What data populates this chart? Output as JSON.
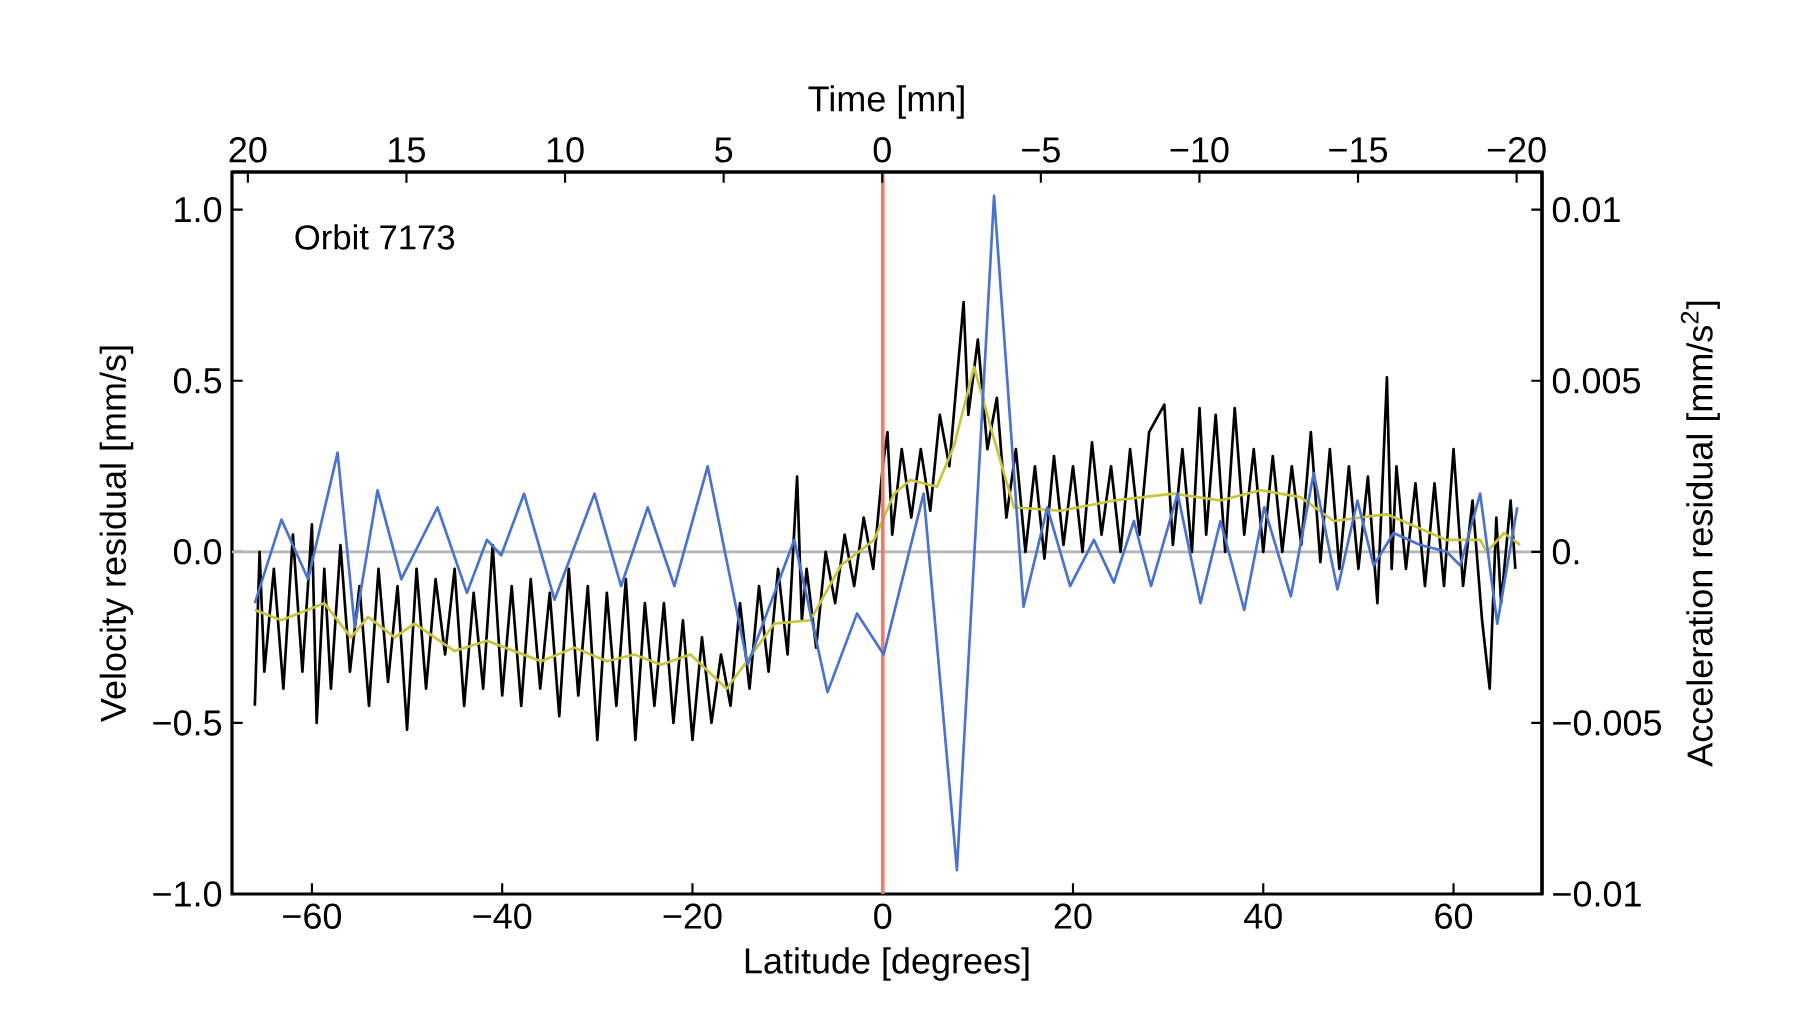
{
  "chart_data": {
    "type": "line",
    "xlabel": "Latitude [degrees]",
    "ylabel": "Velocity residual [mm/s]",
    "y2label": "Acceleration residual [mm/s$^{2}$]",
    "x2label": "Time [mn]",
    "xlim": [
      -68.4,
      69.3
    ],
    "ylim": [
      -1.0,
      1.11
    ],
    "y2lim": [
      -0.01,
      0.0111
    ],
    "x2lim": [
      20.5,
      -20.8
    ],
    "xticks": [
      {
        "value": -60,
        "label": "−60"
      },
      {
        "value": -40,
        "label": "−40"
      },
      {
        "value": -20,
        "label": "−20"
      },
      0,
      20,
      40,
      60
    ],
    "yticks": [
      {
        "value": -1.0,
        "label": "−1.0"
      },
      {
        "value": -0.5,
        "label": "−0.5"
      },
      {
        "value": 0,
        "label": "0.0"
      },
      {
        "value": 0.5,
        "label": "0.5"
      },
      {
        "value": 1.0,
        "label": "1.0"
      }
    ],
    "y2ticks": [
      {
        "value": -0.01,
        "label": "−0.01"
      },
      {
        "value": -0.005,
        "label": "−0.005"
      },
      {
        "value": 0,
        "label": "0."
      },
      0.005,
      0.01
    ],
    "x2ticks": [
      20,
      15,
      10,
      5,
      0,
      {
        "value": -5,
        "label": "−5"
      },
      {
        "value": -10,
        "label": "−10"
      },
      {
        "value": -15,
        "label": "−15"
      },
      {
        "value": -20,
        "label": "−20"
      }
    ],
    "annotations": [
      "Orbit 7173"
    ],
    "ref_lines": [
      {
        "axis": "y",
        "value": 0,
        "color": "#b4b4b4"
      },
      {
        "axis": "x",
        "value": 0,
        "color": "#f07a66"
      }
    ],
    "series": [
      {
        "color": "#000000",
        "x": [
          -66,
          -65.5,
          -65,
          -64,
          -63,
          -62,
          -61,
          -60,
          -59.5,
          -58.7,
          -58,
          -57,
          -56,
          -55,
          -54,
          -53,
          -52,
          -51,
          -50,
          -49,
          -48,
          -47,
          -46,
          -45,
          -44,
          -43,
          -42,
          -41,
          -40,
          -39,
          -38,
          -37,
          -36,
          -35,
          -34,
          -33,
          -32,
          -31,
          -30,
          -29,
          -28,
          -27,
          -26,
          -25,
          -24,
          -23,
          -22,
          -21,
          -20,
          -19,
          -18,
          -17,
          -16,
          -15,
          -14,
          -13,
          -12,
          -11,
          -10,
          -9,
          -8.5,
          -8,
          -7,
          -6,
          -5,
          -4,
          -3,
          -2,
          -1,
          0,
          0.5,
          1,
          2,
          3,
          4,
          5,
          6,
          7,
          8.5,
          9,
          10,
          11,
          12,
          13,
          14,
          15,
          16,
          17,
          18,
          19,
          20,
          21,
          22,
          23,
          24,
          25,
          26,
          27,
          28,
          29.6,
          30.5,
          31.5,
          32.5,
          33.3,
          34,
          35,
          36,
          37,
          38,
          39,
          40,
          41,
          42,
          43,
          44,
          45,
          46,
          47,
          48,
          49,
          50,
          51,
          52,
          53,
          53.5,
          54,
          55,
          56,
          57,
          58,
          59,
          60,
          61,
          62,
          63,
          63.8,
          64.5,
          65,
          66,
          66.5
        ],
        "values": [
          -0.45,
          0.0,
          -0.35,
          -0.05,
          -0.4,
          0.05,
          -0.35,
          0.08,
          -0.5,
          -0.05,
          -0.4,
          0.02,
          -0.35,
          -0.1,
          -0.45,
          -0.05,
          -0.38,
          -0.1,
          -0.52,
          -0.05,
          -0.4,
          -0.08,
          -0.3,
          -0.05,
          -0.45,
          -0.12,
          -0.4,
          0.02,
          -0.42,
          -0.1,
          -0.45,
          -0.08,
          -0.4,
          -0.12,
          -0.48,
          -0.05,
          -0.42,
          -0.1,
          -0.55,
          -0.12,
          -0.45,
          -0.08,
          -0.55,
          -0.15,
          -0.45,
          -0.15,
          -0.5,
          -0.2,
          -0.55,
          -0.25,
          -0.5,
          -0.3,
          -0.45,
          -0.15,
          -0.4,
          -0.1,
          -0.35,
          -0.05,
          -0.3,
          0.22,
          -0.2,
          -0.05,
          -0.28,
          0.0,
          -0.15,
          0.05,
          -0.1,
          0.1,
          -0.05,
          0.25,
          0.35,
          0.05,
          0.3,
          0.1,
          0.3,
          0.12,
          0.4,
          0.25,
          0.73,
          0.4,
          0.62,
          0.3,
          0.45,
          0.1,
          0.3,
          0.0,
          0.25,
          -0.02,
          0.28,
          0.02,
          0.25,
          0.0,
          0.32,
          0.05,
          0.25,
          0.0,
          0.3,
          0.05,
          0.35,
          0.43,
          0.02,
          0.3,
          0.0,
          0.42,
          0.05,
          0.4,
          0.0,
          0.42,
          0.05,
          0.3,
          0.0,
          0.28,
          0.0,
          0.25,
          0.02,
          0.35,
          -0.03,
          0.3,
          -0.05,
          0.25,
          -0.05,
          0.22,
          -0.15,
          0.51,
          -0.05,
          0.25,
          -0.05,
          0.2,
          -0.1,
          0.2,
          -0.1,
          0.3,
          -0.1,
          0.15,
          -0.2,
          -0.4,
          0.1,
          -0.15,
          0.15,
          -0.05
        ]
      },
      {
        "color": "#c9c43a",
        "x": [
          -66,
          -63.2,
          -58.7,
          -55.9,
          -54.1,
          -51.3,
          -49.2,
          -45,
          -41.6,
          -35.9,
          -32.4,
          -29,
          -26.1,
          -23.3,
          -20.2,
          -16.4,
          -11.4,
          -7.6,
          -4.4,
          -0.9,
          1.2,
          2.9,
          5.7,
          7.5,
          9.6,
          11.7,
          13.8,
          18.7,
          24.3,
          30.6,
          35.5,
          39.7,
          43.9,
          47.4,
          53,
          59.2,
          62.8,
          63.5,
          65.3,
          67
        ],
        "values": [
          -0.17,
          -0.2,
          -0.15,
          -0.25,
          -0.19,
          -0.25,
          -0.21,
          -0.29,
          -0.26,
          -0.32,
          -0.28,
          -0.32,
          -0.3,
          -0.33,
          -0.3,
          -0.4,
          -0.21,
          -0.2,
          -0.04,
          0.035,
          0.17,
          0.21,
          0.19,
          0.31,
          0.54,
          0.33,
          0.13,
          0.12,
          0.15,
          0.17,
          0.15,
          0.18,
          0.16,
          0.09,
          0.11,
          0.035,
          0.035,
          0.0,
          0.055,
          0.02
        ]
      },
      {
        "color": "#4a72cf",
        "axis": "y2",
        "x": [
          -66,
          -63.2,
          -60.4,
          -57.3,
          -55.5,
          -53.1,
          -50.6,
          -46.8,
          -43.7,
          -41.6,
          -40.1,
          -37.7,
          -34.5,
          -30.3,
          -27.5,
          -24.7,
          -21.9,
          -18.4,
          -14.2,
          -9.3,
          -5.8,
          -2.7,
          0.1,
          4.3,
          7.8,
          11.7,
          14.8,
          17.3,
          19.7,
          22.2,
          24.3,
          26.4,
          28.2,
          31,
          33.4,
          35.5,
          38,
          40.1,
          42.9,
          45.3,
          47.8,
          49.9,
          51.6,
          53.7,
          56.5,
          59.3,
          60.7,
          62.8,
          64.6,
          66.7
        ],
        "values": [
          -0.0015,
          0.00094,
          -0.0008,
          0.0029,
          -0.0022,
          0.0018,
          -0.0008,
          0.0013,
          -0.0012,
          0.00035,
          -0.0001,
          0.0017,
          -0.0014,
          0.0017,
          -0.001,
          0.0013,
          -0.001,
          0.0025,
          -0.0033,
          0.00035,
          -0.0041,
          -0.0018,
          -0.003,
          0.0017,
          -0.0093,
          0.0104,
          -0.0016,
          0.0013,
          -0.001,
          0.00035,
          -0.0009,
          0.0009,
          -0.001,
          0.0017,
          -0.0015,
          0.0009,
          -0.0017,
          0.0013,
          -0.0013,
          0.0023,
          -0.0011,
          0.0015,
          -0.0004,
          0.00055,
          0.0002,
          0.0,
          -0.0004,
          0.0017,
          -0.0021,
          0.0013
        ]
      }
    ]
  }
}
